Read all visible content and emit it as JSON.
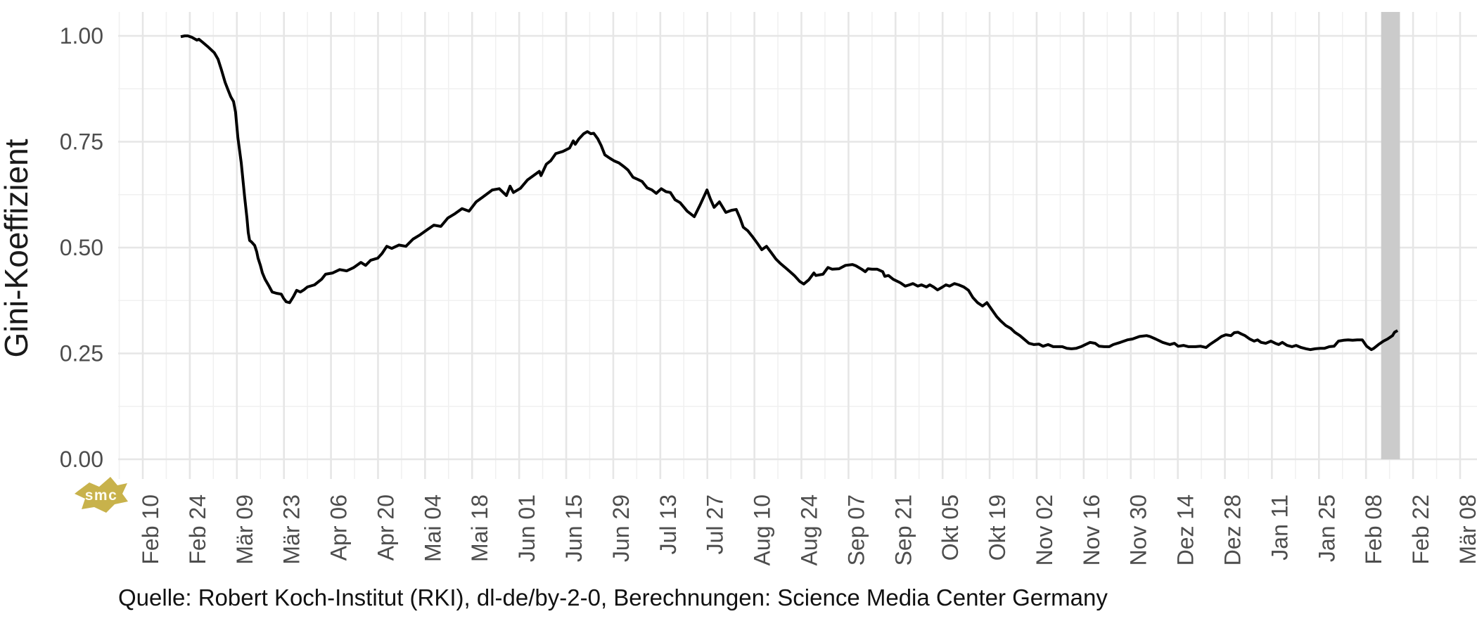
{
  "chart_data": {
    "type": "line",
    "title": "",
    "xlabel": "",
    "ylabel": "Gini-Koeffizient",
    "caption": "Quelle: Robert Koch-Institut (RKI), dl-de/by-2-0, Berechnungen: Science Media Center Germany",
    "watermark_text": "smc",
    "ylim": [
      0,
      1
    ],
    "x_axis_range_days": [
      -7.3,
      397
    ],
    "grid": {
      "major_on": true,
      "minor_on": true,
      "x_major_every_days": 14,
      "x_minor_offset_days": -7,
      "y_major_step": 0.25,
      "y_minor_step": 0.125
    },
    "legend": "none",
    "yticks": [
      {
        "label": "0.00",
        "value": 0.0
      },
      {
        "label": "0.25",
        "value": 0.25
      },
      {
        "label": "0.50",
        "value": 0.5
      },
      {
        "label": "0.75",
        "value": 0.75
      },
      {
        "label": "1.00",
        "value": 1.0
      }
    ],
    "xticks": [
      {
        "label": "Feb 10",
        "day": 0
      },
      {
        "label": "Feb 24",
        "day": 14
      },
      {
        "label": "Mär 09",
        "day": 28
      },
      {
        "label": "Mär 23",
        "day": 42
      },
      {
        "label": "Apr 06",
        "day": 56
      },
      {
        "label": "Apr 20",
        "day": 70
      },
      {
        "label": "Mai 04",
        "day": 84
      },
      {
        "label": "Mai 18",
        "day": 98
      },
      {
        "label": "Jun 01",
        "day": 112
      },
      {
        "label": "Jun 15",
        "day": 126
      },
      {
        "label": "Jun 29",
        "day": 140
      },
      {
        "label": "Jul 13",
        "day": 154
      },
      {
        "label": "Jul 27",
        "day": 168
      },
      {
        "label": "Aug 10",
        "day": 182
      },
      {
        "label": "Aug 24",
        "day": 196
      },
      {
        "label": "Sep 07",
        "day": 210
      },
      {
        "label": "Sep 21",
        "day": 224
      },
      {
        "label": "Okt 05",
        "day": 238
      },
      {
        "label": "Okt 19",
        "day": 252
      },
      {
        "label": "Nov 02",
        "day": 266
      },
      {
        "label": "Nov 16",
        "day": 280
      },
      {
        "label": "Nov 30",
        "day": 294
      },
      {
        "label": "Dez 14",
        "day": 308
      },
      {
        "label": "Dez 28",
        "day": 322
      },
      {
        "label": "Jan 11",
        "day": 336
      },
      {
        "label": "Jan 25",
        "day": 350
      },
      {
        "label": "Feb 08",
        "day": 364
      },
      {
        "label": "Feb 22",
        "day": 378
      },
      {
        "label": "Mär 08",
        "day": 392
      }
    ],
    "highlight_band": {
      "from_day": 368.5,
      "to_day": 374.1,
      "value_from": 0,
      "value_to": "panel_top"
    },
    "series": [
      {
        "name": "Gini-Koeffizient",
        "points": [
          [
            11.3,
            0.998
          ],
          [
            12.5,
            1.0
          ],
          [
            13.4,
            1.0
          ],
          [
            14.5,
            0.997
          ],
          [
            16.1,
            0.99
          ],
          [
            16.7,
            0.992
          ],
          [
            17.8,
            0.985
          ],
          [
            19.3,
            0.975
          ],
          [
            21.3,
            0.96
          ],
          [
            22.4,
            0.945
          ],
          [
            23.4,
            0.92
          ],
          [
            24.5,
            0.89
          ],
          [
            25.5,
            0.87
          ],
          [
            26.2,
            0.856
          ],
          [
            27,
            0.845
          ],
          [
            27.6,
            0.82
          ],
          [
            28.3,
            0.76
          ],
          [
            29.3,
            0.7
          ],
          [
            30.3,
            0.62
          ],
          [
            31,
            0.57
          ],
          [
            31.4,
            0.535
          ],
          [
            31.8,
            0.517
          ],
          [
            32.4,
            0.513
          ],
          [
            33.3,
            0.505
          ],
          [
            33.9,
            0.49
          ],
          [
            34.3,
            0.475
          ],
          [
            35,
            0.458
          ],
          [
            35.6,
            0.44
          ],
          [
            36.4,
            0.425
          ],
          [
            37.5,
            0.41
          ],
          [
            38.5,
            0.395
          ],
          [
            39.8,
            0.392
          ],
          [
            41.2,
            0.39
          ],
          [
            41.9,
            0.38
          ],
          [
            42.7,
            0.372
          ],
          [
            43.7,
            0.37
          ],
          [
            44.8,
            0.384
          ],
          [
            45.8,
            0.399
          ],
          [
            46.9,
            0.395
          ],
          [
            47.9,
            0.4
          ],
          [
            49,
            0.407
          ],
          [
            51.1,
            0.412
          ],
          [
            53.2,
            0.425
          ],
          [
            54.4,
            0.437
          ],
          [
            56.5,
            0.44
          ],
          [
            58.6,
            0.448
          ],
          [
            60.7,
            0.445
          ],
          [
            62.8,
            0.453
          ],
          [
            64.9,
            0.465
          ],
          [
            66.3,
            0.458
          ],
          [
            67.8,
            0.47
          ],
          [
            69.9,
            0.475
          ],
          [
            71.2,
            0.486
          ],
          [
            72.6,
            0.503
          ],
          [
            74.1,
            0.498
          ],
          [
            76.2,
            0.506
          ],
          [
            78.3,
            0.503
          ],
          [
            80.4,
            0.52
          ],
          [
            82.5,
            0.53
          ],
          [
            84.6,
            0.542
          ],
          [
            86.6,
            0.553
          ],
          [
            88.7,
            0.55
          ],
          [
            90.8,
            0.57
          ],
          [
            92.9,
            0.58
          ],
          [
            95,
            0.592
          ],
          [
            97.1,
            0.586
          ],
          [
            99.2,
            0.608
          ],
          [
            101.3,
            0.62
          ],
          [
            104,
            0.636
          ],
          [
            106.1,
            0.639
          ],
          [
            108.2,
            0.623
          ],
          [
            109.3,
            0.645
          ],
          [
            110.3,
            0.63
          ],
          [
            112.4,
            0.64
          ],
          [
            114.5,
            0.66
          ],
          [
            116.6,
            0.672
          ],
          [
            118,
            0.68
          ],
          [
            118.5,
            0.67
          ],
          [
            120.1,
            0.697
          ],
          [
            121.4,
            0.705
          ],
          [
            122.9,
            0.722
          ],
          [
            125,
            0.727
          ],
          [
            127,
            0.735
          ],
          [
            128.1,
            0.752
          ],
          [
            128.7,
            0.744
          ],
          [
            129.8,
            0.757
          ],
          [
            131.2,
            0.769
          ],
          [
            132.3,
            0.774
          ],
          [
            133.3,
            0.769
          ],
          [
            134.2,
            0.77
          ],
          [
            135.4,
            0.757
          ],
          [
            136.4,
            0.741
          ],
          [
            137.5,
            0.719
          ],
          [
            139,
            0.711
          ],
          [
            140.2,
            0.705
          ],
          [
            141.7,
            0.7
          ],
          [
            143.2,
            0.691
          ],
          [
            144.4,
            0.683
          ],
          [
            145.9,
            0.666
          ],
          [
            147.3,
            0.661
          ],
          [
            148.6,
            0.656
          ],
          [
            150.1,
            0.641
          ],
          [
            151.5,
            0.636
          ],
          [
            152.8,
            0.628
          ],
          [
            154.3,
            0.639
          ],
          [
            155.7,
            0.632
          ],
          [
            157,
            0.63
          ],
          [
            158.4,
            0.613
          ],
          [
            159.9,
            0.606
          ],
          [
            162,
            0.586
          ],
          [
            164.1,
            0.573
          ],
          [
            165.8,
            0.6
          ],
          [
            167.9,
            0.636
          ],
          [
            168.9,
            0.615
          ],
          [
            170,
            0.595
          ],
          [
            171.6,
            0.608
          ],
          [
            173.5,
            0.583
          ],
          [
            175.2,
            0.588
          ],
          [
            176.6,
            0.59
          ],
          [
            177.7,
            0.57
          ],
          [
            178.7,
            0.548
          ],
          [
            180,
            0.54
          ],
          [
            181.5,
            0.525
          ],
          [
            182.9,
            0.51
          ],
          [
            184.2,
            0.495
          ],
          [
            185.6,
            0.503
          ],
          [
            187.1,
            0.487
          ],
          [
            188.4,
            0.473
          ],
          [
            189.8,
            0.462
          ],
          [
            191.3,
            0.452
          ],
          [
            192.6,
            0.443
          ],
          [
            194,
            0.433
          ],
          [
            195.5,
            0.42
          ],
          [
            196.7,
            0.414
          ],
          [
            198.2,
            0.424
          ],
          [
            199.7,
            0.44
          ],
          [
            200.3,
            0.434
          ],
          [
            202.4,
            0.437
          ],
          [
            203.9,
            0.453
          ],
          [
            205.1,
            0.449
          ],
          [
            207.2,
            0.45
          ],
          [
            209.1,
            0.458
          ],
          [
            211.2,
            0.46
          ],
          [
            212.2,
            0.457
          ],
          [
            213.9,
            0.449
          ],
          [
            215,
            0.443
          ],
          [
            215.8,
            0.45
          ],
          [
            217,
            0.449
          ],
          [
            218.5,
            0.449
          ],
          [
            220.2,
            0.443
          ],
          [
            220.8,
            0.432
          ],
          [
            221.9,
            0.434
          ],
          [
            223.3,
            0.425
          ],
          [
            225.4,
            0.417
          ],
          [
            226.9,
            0.409
          ],
          [
            228.1,
            0.412
          ],
          [
            229.2,
            0.415
          ],
          [
            230.6,
            0.409
          ],
          [
            231.7,
            0.412
          ],
          [
            233.2,
            0.407
          ],
          [
            234.2,
            0.412
          ],
          [
            235.3,
            0.407
          ],
          [
            236.5,
            0.4
          ],
          [
            238,
            0.407
          ],
          [
            239,
            0.412
          ],
          [
            240.1,
            0.409
          ],
          [
            241.5,
            0.415
          ],
          [
            242.8,
            0.412
          ],
          [
            244.3,
            0.407
          ],
          [
            245.7,
            0.399
          ],
          [
            247,
            0.382
          ],
          [
            248.4,
            0.37
          ],
          [
            249.9,
            0.362
          ],
          [
            251.2,
            0.37
          ],
          [
            252.6,
            0.354
          ],
          [
            254.1,
            0.337
          ],
          [
            255.4,
            0.326
          ],
          [
            256.8,
            0.316
          ],
          [
            258.3,
            0.309
          ],
          [
            259.5,
            0.3
          ],
          [
            261,
            0.292
          ],
          [
            262.5,
            0.282
          ],
          [
            263.7,
            0.274
          ],
          [
            265.2,
            0.271
          ],
          [
            266.7,
            0.272
          ],
          [
            267.9,
            0.267
          ],
          [
            269.4,
            0.271
          ],
          [
            270.9,
            0.266
          ],
          [
            272.1,
            0.266
          ],
          [
            273.6,
            0.266
          ],
          [
            275,
            0.262
          ],
          [
            276.3,
            0.261
          ],
          [
            277.7,
            0.262
          ],
          [
            279.2,
            0.266
          ],
          [
            280.5,
            0.271
          ],
          [
            281.9,
            0.276
          ],
          [
            283.4,
            0.274
          ],
          [
            284.6,
            0.267
          ],
          [
            286.1,
            0.266
          ],
          [
            287.6,
            0.266
          ],
          [
            288.8,
            0.271
          ],
          [
            290.9,
            0.276
          ],
          [
            293,
            0.282
          ],
          [
            294.5,
            0.284
          ],
          [
            296.6,
            0.29
          ],
          [
            298.7,
            0.292
          ],
          [
            299.7,
            0.29
          ],
          [
            301.4,
            0.284
          ],
          [
            303.5,
            0.276
          ],
          [
            305.6,
            0.271
          ],
          [
            307,
            0.274
          ],
          [
            308.1,
            0.267
          ],
          [
            309.7,
            0.269
          ],
          [
            311.2,
            0.266
          ],
          [
            313.3,
            0.266
          ],
          [
            314.8,
            0.267
          ],
          [
            316.4,
            0.264
          ],
          [
            317.5,
            0.271
          ],
          [
            319.6,
            0.282
          ],
          [
            321,
            0.29
          ],
          [
            322.3,
            0.294
          ],
          [
            323.8,
            0.292
          ],
          [
            324.8,
            0.299
          ],
          [
            325.9,
            0.3
          ],
          [
            326.9,
            0.296
          ],
          [
            328,
            0.292
          ],
          [
            329.4,
            0.284
          ],
          [
            330.7,
            0.279
          ],
          [
            331.7,
            0.282
          ],
          [
            332.8,
            0.276
          ],
          [
            334.2,
            0.274
          ],
          [
            335.7,
            0.279
          ],
          [
            337,
            0.274
          ],
          [
            338,
            0.271
          ],
          [
            339.1,
            0.276
          ],
          [
            340.5,
            0.269
          ],
          [
            342,
            0.266
          ],
          [
            343.2,
            0.269
          ],
          [
            344.7,
            0.264
          ],
          [
            346.2,
            0.261
          ],
          [
            347.4,
            0.259
          ],
          [
            348.9,
            0.261
          ],
          [
            350.4,
            0.262
          ],
          [
            351.6,
            0.262
          ],
          [
            353.1,
            0.266
          ],
          [
            354.5,
            0.267
          ],
          [
            355.8,
            0.279
          ],
          [
            357.3,
            0.281
          ],
          [
            358.7,
            0.282
          ],
          [
            360,
            0.281
          ],
          [
            361.4,
            0.282
          ],
          [
            362.9,
            0.282
          ],
          [
            364.2,
            0.267
          ],
          [
            365.6,
            0.259
          ],
          [
            366.3,
            0.262
          ],
          [
            367.7,
            0.271
          ],
          [
            369.2,
            0.279
          ],
          [
            370.4,
            0.284
          ],
          [
            371.9,
            0.292
          ],
          [
            372.5,
            0.3
          ],
          [
            373.4,
            0.304
          ]
        ]
      }
    ],
    "colors": {
      "line": "#000000",
      "band": "#cbcbcb",
      "grid_major": "#e6e6e6",
      "grid_minor": "#f0f0f0",
      "axis_text": "#4d4d4d",
      "axis_title": "#1a1a1a",
      "caption_text": "#111111",
      "logo_gold": "#c8b24b",
      "logo_text": "#fffdf2"
    }
  }
}
